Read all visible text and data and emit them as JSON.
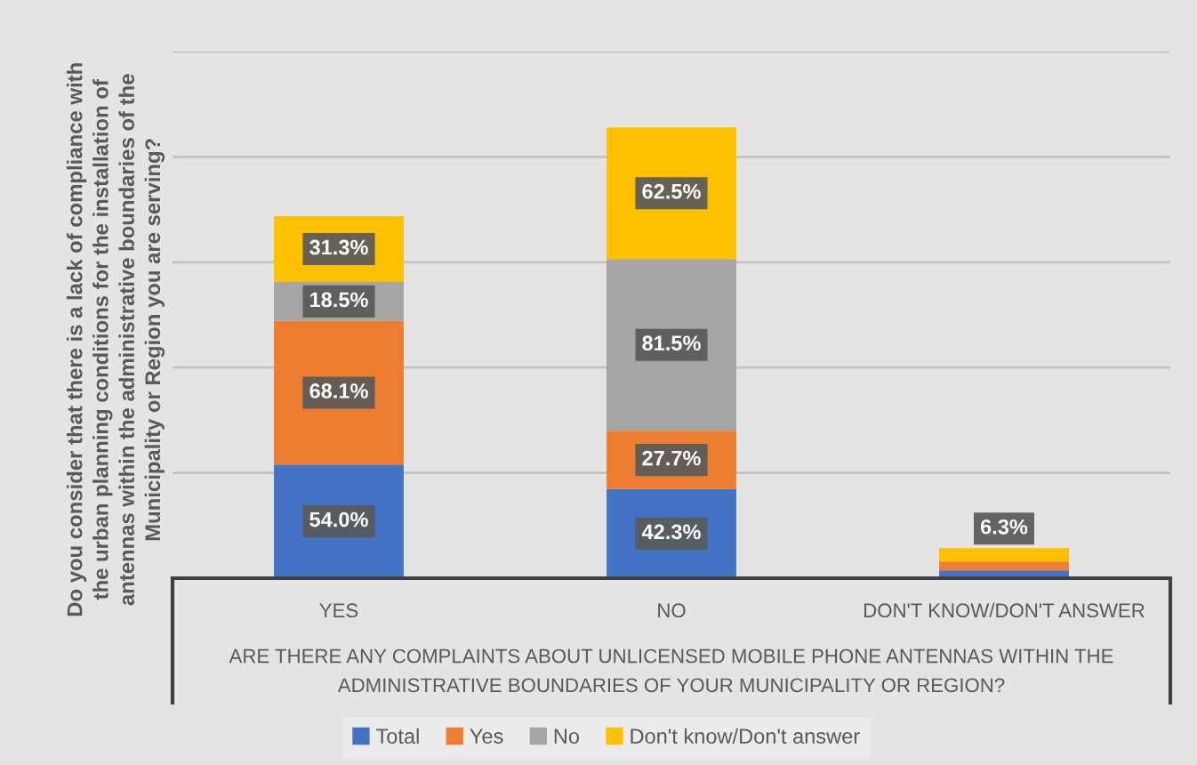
{
  "chart_data": {
    "type": "bar",
    "stacked": true,
    "ylabel": "Do you consider that there is a lack of compliance with\nthe urban planning conditions for the installation of\nantennas within the administrative boundaries of the\nMunicipality or Region you are serving?",
    "xlabel": "ARE THERE ANY COMPLAINTS ABOUT UNLICENSED MOBILE PHONE ANTENNAS WITHIN THE\nADMINISTRATIVE BOUNDARIES OF YOUR MUNICIPALITY OR REGION?",
    "categories": [
      "YES",
      "NO",
      "DON'T KNOW/DON'T ANSWER"
    ],
    "series": [
      {
        "name": "Total",
        "color": "#4472c4",
        "values": [
          54.0,
          42.3,
          3.7
        ],
        "value_labels": [
          "54.0%",
          "42.3%",
          null
        ]
      },
      {
        "name": "Yes",
        "color": "#ed7d31",
        "values": [
          68.1,
          27.7,
          4.2
        ],
        "value_labels": [
          "68.1%",
          "27.7%",
          null
        ]
      },
      {
        "name": "No",
        "color": "#a5a5a5",
        "values": [
          18.5,
          81.5,
          null
        ],
        "value_labels": [
          "18.5%",
          "81.5%",
          null
        ]
      },
      {
        "name": "Don't know/Don't answer",
        "color": "#ffc000",
        "values": [
          31.3,
          62.5,
          6.3
        ],
        "value_labels": [
          "31.3%",
          "62.5%",
          "6.3%"
        ]
      }
    ],
    "ylim": [
      0,
      250
    ],
    "yticks": [
      {
        "value": 0,
        "label": null
      },
      {
        "value": 50,
        "label": null
      },
      {
        "value": 100,
        "label": null
      },
      {
        "value": 150,
        "label": null
      },
      {
        "value": 200,
        "label": null
      },
      {
        "value": 250,
        "label": null
      }
    ],
    "tick_labels": "x",
    "grid": "y",
    "legend": "bottom"
  }
}
